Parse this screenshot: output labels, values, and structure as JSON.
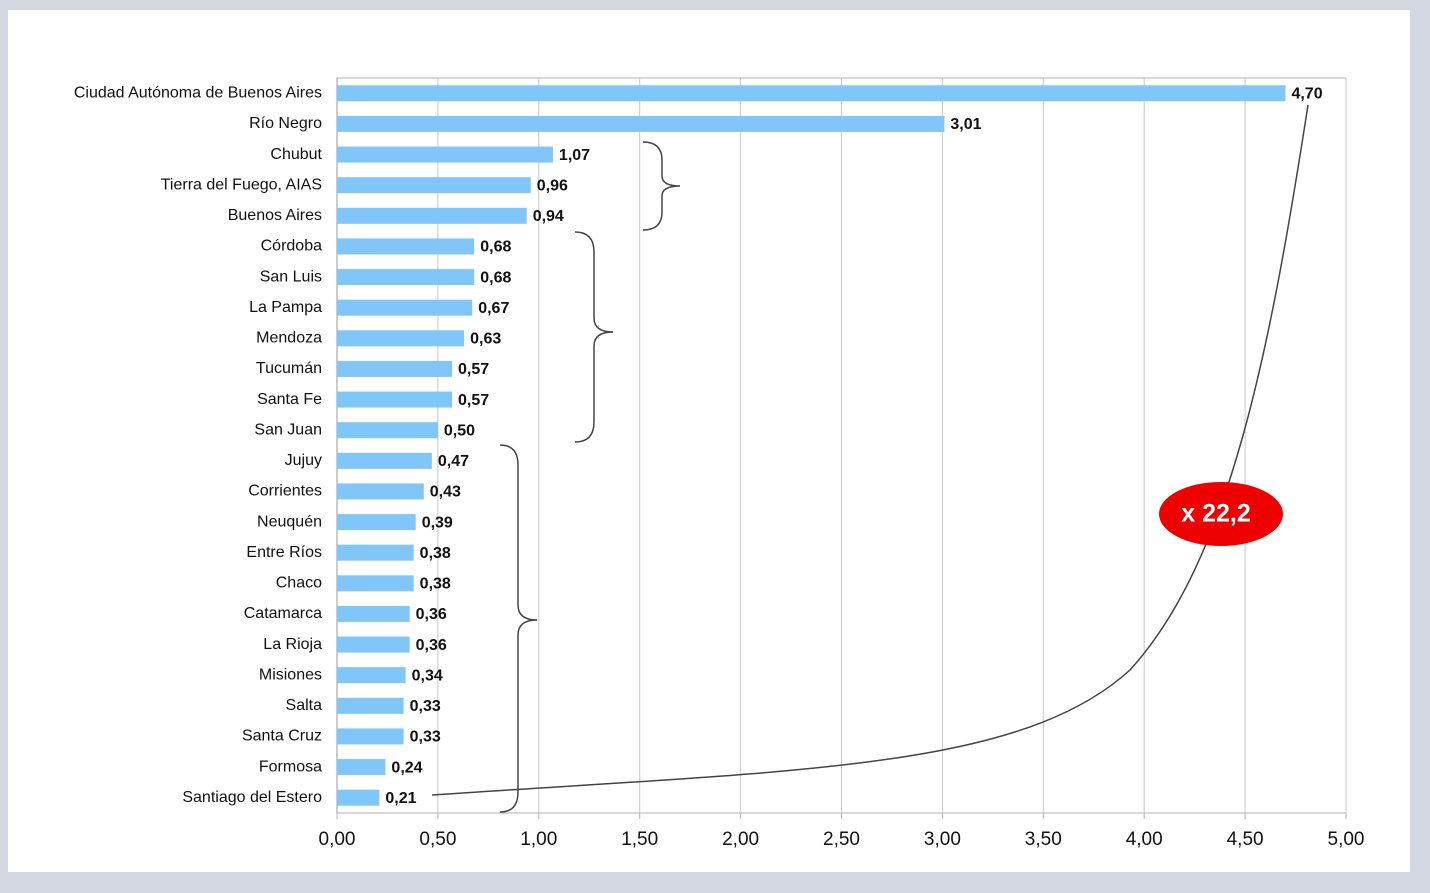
{
  "chart_data": {
    "type": "bar",
    "orientation": "horizontal",
    "categories": [
      "Ciudad Autónoma de Buenos Aires",
      "Río Negro",
      "Chubut",
      "Tierra del Fuego, AIAS",
      "Buenos Aires",
      "Córdoba",
      "San Luis",
      "La Pampa",
      "Mendoza",
      "Tucumán",
      "Santa Fe",
      "San Juan",
      "Jujuy",
      "Corrientes",
      "Neuquén",
      "Entre Ríos",
      "Chaco",
      "Catamarca",
      "La Rioja",
      "Misiones",
      "Salta",
      "Santa Cruz",
      "Formosa",
      "Santiago del Estero"
    ],
    "values": [
      4.7,
      3.01,
      1.07,
      0.96,
      0.94,
      0.68,
      0.68,
      0.67,
      0.63,
      0.57,
      0.57,
      0.5,
      0.47,
      0.43,
      0.39,
      0.38,
      0.38,
      0.36,
      0.36,
      0.34,
      0.33,
      0.33,
      0.24,
      0.21
    ],
    "value_labels": [
      "4,70",
      "3,01",
      "1,07",
      "0,96",
      "0,94",
      "0,68",
      "0,68",
      "0,67",
      "0,63",
      "0,57",
      "0,57",
      "0,50",
      "0,47",
      "0,43",
      "0,39",
      "0,38",
      "0,38",
      "0,36",
      "0,36",
      "0,34",
      "0,33",
      "0,33",
      "0,24",
      "0,21"
    ],
    "color": "#80c6f8",
    "xlim": [
      0,
      5
    ],
    "xticks": [
      {
        "value": 0,
        "label": "0,00"
      },
      {
        "value": 0.5,
        "label": "0,50"
      },
      {
        "value": 1,
        "label": "1,00"
      },
      {
        "value": 1.5,
        "label": "1,50"
      },
      {
        "value": 2,
        "label": "2,00"
      },
      {
        "value": 2.5,
        "label": "2,50"
      },
      {
        "value": 3,
        "label": "3,00"
      },
      {
        "value": 3.5,
        "label": "3,50"
      },
      {
        "value": 4,
        "label": "4,00"
      },
      {
        "value": 4.5,
        "label": "4,50"
      },
      {
        "value": 5,
        "label": "5,00"
      }
    ],
    "grid": true,
    "annotation": "x 22,2"
  }
}
